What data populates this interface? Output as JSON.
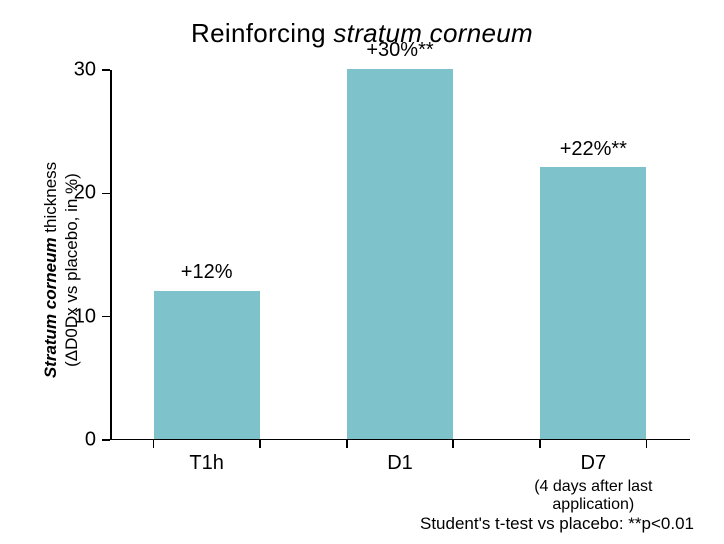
{
  "chart": {
    "type": "bar",
    "title_prefix": "Reinforcing ",
    "title_italic": "stratum corneum",
    "title_fontsize": 26,
    "ylabel_line1_italic": "Stratum corneum",
    "ylabel_line1_rest": " thickness",
    "ylabel_line2": "(ΔD0Dx vs placebo, in %)",
    "label_fontsize": 17,
    "ylim": [
      0,
      30
    ],
    "yticks": [
      0,
      10,
      20,
      30
    ],
    "tick_fontsize": 20,
    "categories": [
      "T1h",
      "D1",
      "D7"
    ],
    "category_sublabels": [
      "",
      "",
      "(4 days after last\napplication)"
    ],
    "values": [
      12,
      30,
      22
    ],
    "value_labels": [
      "+12%",
      "+30%**",
      "+22%**"
    ],
    "bar_color": "#7ec3cb",
    "bar_width_ratio": 0.55,
    "background_color": "#ffffff",
    "axis_color": "#000000",
    "footnote": "Student's t-test vs placebo: **p<0.01"
  }
}
